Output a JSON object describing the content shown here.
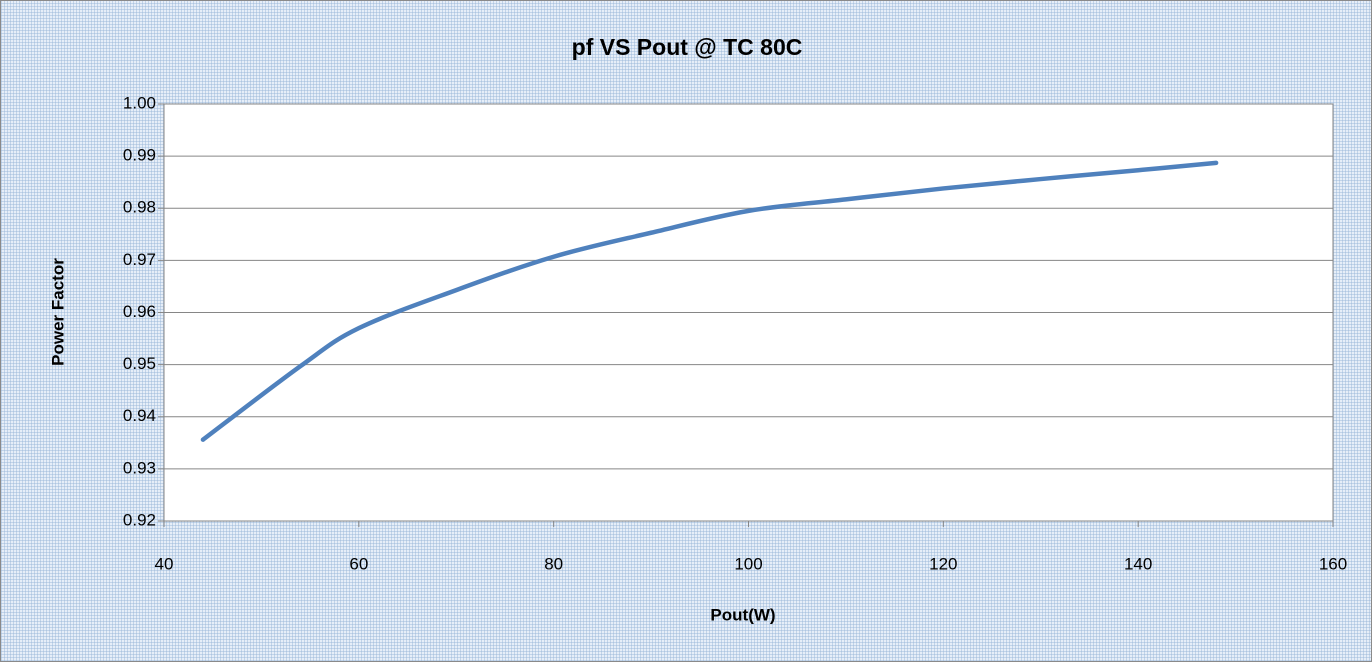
{
  "chart_data": {
    "type": "line",
    "title": "pf VS Pout @ TC 80C",
    "x_label": "Pout(W)",
    "y_label": "Power Factor",
    "x": [
      44,
      54,
      60,
      70,
      80,
      90,
      100,
      110,
      120,
      130,
      140,
      148
    ],
    "series": [
      {
        "name": "pf",
        "color": "#4f81bd",
        "values": [
          0.9356,
          0.9497,
          0.957,
          0.9643,
          0.9707,
          0.9753,
          0.9795,
          0.9817,
          0.9838,
          0.9856,
          0.9873,
          0.9887
        ]
      }
    ],
    "xlim": [
      40,
      160
    ],
    "xticks": [
      40,
      60,
      80,
      100,
      120,
      140,
      160
    ],
    "ylim": [
      0.92,
      1.0
    ],
    "yticks": [
      {
        "value": 0.92,
        "label": "0.92"
      },
      {
        "value": 0.93,
        "label": "0.93"
      },
      {
        "value": 0.94,
        "label": "0.94"
      },
      {
        "value": 0.95,
        "label": "0.95"
      },
      {
        "value": 0.96,
        "label": "0.96"
      },
      {
        "value": 0.97,
        "label": "0.97"
      },
      {
        "value": 0.98,
        "label": "0.98"
      },
      {
        "value": 0.99,
        "label": "0.99"
      },
      {
        "value": 1.0,
        "label": "1.00"
      }
    ],
    "grid": true
  }
}
